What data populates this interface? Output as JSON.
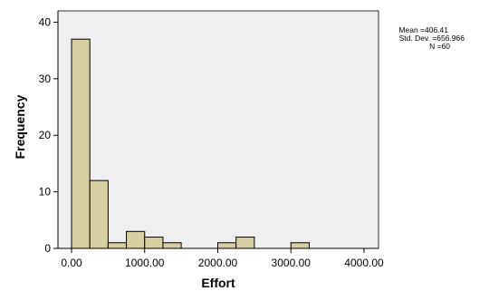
{
  "chart_data": {
    "type": "bar",
    "histogram": true,
    "xlabel": "Effort",
    "ylabel": "Frequency",
    "xlim": [
      0,
      4000
    ],
    "ylim": [
      0,
      42
    ],
    "x_ticks": [
      0,
      1000,
      2000,
      3000,
      4000
    ],
    "x_tick_labels": [
      "0.00",
      "1000.00",
      "2000.00",
      "3000.00",
      "4000.00"
    ],
    "y_ticks": [
      0,
      10,
      20,
      30,
      40
    ],
    "y_tick_labels": [
      "0",
      "10",
      "20",
      "30",
      "40"
    ],
    "bin_width": 250,
    "bins": [
      {
        "start": 0,
        "end": 250,
        "count": 37
      },
      {
        "start": 250,
        "end": 500,
        "count": 12
      },
      {
        "start": 500,
        "end": 750,
        "count": 1
      },
      {
        "start": 750,
        "end": 1000,
        "count": 3
      },
      {
        "start": 1000,
        "end": 1250,
        "count": 2
      },
      {
        "start": 1250,
        "end": 1500,
        "count": 1
      },
      {
        "start": 1500,
        "end": 1750,
        "count": 0
      },
      {
        "start": 1750,
        "end": 2000,
        "count": 0
      },
      {
        "start": 2000,
        "end": 2250,
        "count": 1
      },
      {
        "start": 2250,
        "end": 2500,
        "count": 2
      },
      {
        "start": 2500,
        "end": 2750,
        "count": 0
      },
      {
        "start": 2750,
        "end": 3000,
        "count": 0
      },
      {
        "start": 3000,
        "end": 3250,
        "count": 1
      }
    ],
    "stats": {
      "mean": "Mean =406.41",
      "std_dev": "Std. Dev. =656.966",
      "n": "N =60"
    },
    "grid": false,
    "legend": "none",
    "colors": {
      "bar_fill": "#d6cfa2",
      "bar_stroke": "#000000",
      "plot_background": "#efefef"
    }
  }
}
